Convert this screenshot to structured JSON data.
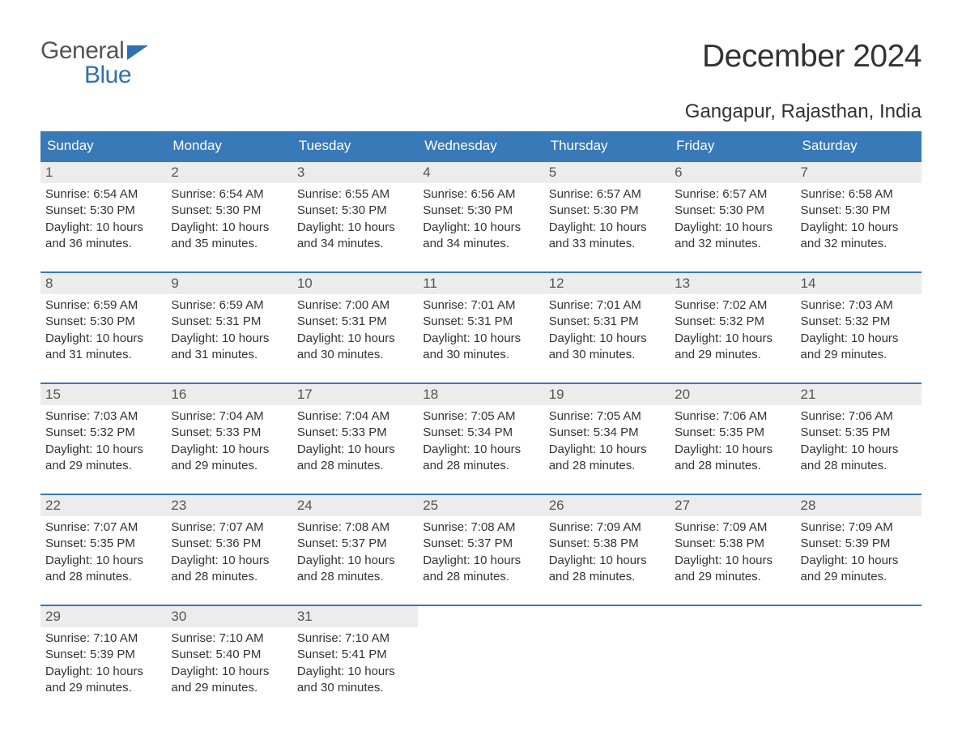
{
  "logo": {
    "word1": "General",
    "word2": "Blue"
  },
  "title": "December 2024",
  "location": "Gangapur, Rajasthan, India",
  "colors": {
    "header_bg": "#3879b8",
    "header_text": "#ffffff",
    "row_accent": "#3879b8",
    "daynum_bg": "#ececec",
    "body_text": "#333333",
    "logo_blue": "#2f70b0",
    "logo_gray": "#555555",
    "page_bg": "#ffffff"
  },
  "fonts": {
    "family": "Arial",
    "title_size_pt": 29,
    "location_size_pt": 18,
    "dow_size_pt": 13,
    "body_size_pt": 11
  },
  "days_of_week": [
    "Sunday",
    "Monday",
    "Tuesday",
    "Wednesday",
    "Thursday",
    "Friday",
    "Saturday"
  ],
  "weeks": [
    [
      {
        "n": "1",
        "sunrise": "Sunrise: 6:54 AM",
        "sunset": "Sunset: 5:30 PM",
        "d1": "Daylight: 10 hours",
        "d2": "and 36 minutes."
      },
      {
        "n": "2",
        "sunrise": "Sunrise: 6:54 AM",
        "sunset": "Sunset: 5:30 PM",
        "d1": "Daylight: 10 hours",
        "d2": "and 35 minutes."
      },
      {
        "n": "3",
        "sunrise": "Sunrise: 6:55 AM",
        "sunset": "Sunset: 5:30 PM",
        "d1": "Daylight: 10 hours",
        "d2": "and 34 minutes."
      },
      {
        "n": "4",
        "sunrise": "Sunrise: 6:56 AM",
        "sunset": "Sunset: 5:30 PM",
        "d1": "Daylight: 10 hours",
        "d2": "and 34 minutes."
      },
      {
        "n": "5",
        "sunrise": "Sunrise: 6:57 AM",
        "sunset": "Sunset: 5:30 PM",
        "d1": "Daylight: 10 hours",
        "d2": "and 33 minutes."
      },
      {
        "n": "6",
        "sunrise": "Sunrise: 6:57 AM",
        "sunset": "Sunset: 5:30 PM",
        "d1": "Daylight: 10 hours",
        "d2": "and 32 minutes."
      },
      {
        "n": "7",
        "sunrise": "Sunrise: 6:58 AM",
        "sunset": "Sunset: 5:30 PM",
        "d1": "Daylight: 10 hours",
        "d2": "and 32 minutes."
      }
    ],
    [
      {
        "n": "8",
        "sunrise": "Sunrise: 6:59 AM",
        "sunset": "Sunset: 5:30 PM",
        "d1": "Daylight: 10 hours",
        "d2": "and 31 minutes."
      },
      {
        "n": "9",
        "sunrise": "Sunrise: 6:59 AM",
        "sunset": "Sunset: 5:31 PM",
        "d1": "Daylight: 10 hours",
        "d2": "and 31 minutes."
      },
      {
        "n": "10",
        "sunrise": "Sunrise: 7:00 AM",
        "sunset": "Sunset: 5:31 PM",
        "d1": "Daylight: 10 hours",
        "d2": "and 30 minutes."
      },
      {
        "n": "11",
        "sunrise": "Sunrise: 7:01 AM",
        "sunset": "Sunset: 5:31 PM",
        "d1": "Daylight: 10 hours",
        "d2": "and 30 minutes."
      },
      {
        "n": "12",
        "sunrise": "Sunrise: 7:01 AM",
        "sunset": "Sunset: 5:31 PM",
        "d1": "Daylight: 10 hours",
        "d2": "and 30 minutes."
      },
      {
        "n": "13",
        "sunrise": "Sunrise: 7:02 AM",
        "sunset": "Sunset: 5:32 PM",
        "d1": "Daylight: 10 hours",
        "d2": "and 29 minutes."
      },
      {
        "n": "14",
        "sunrise": "Sunrise: 7:03 AM",
        "sunset": "Sunset: 5:32 PM",
        "d1": "Daylight: 10 hours",
        "d2": "and 29 minutes."
      }
    ],
    [
      {
        "n": "15",
        "sunrise": "Sunrise: 7:03 AM",
        "sunset": "Sunset: 5:32 PM",
        "d1": "Daylight: 10 hours",
        "d2": "and 29 minutes."
      },
      {
        "n": "16",
        "sunrise": "Sunrise: 7:04 AM",
        "sunset": "Sunset: 5:33 PM",
        "d1": "Daylight: 10 hours",
        "d2": "and 29 minutes."
      },
      {
        "n": "17",
        "sunrise": "Sunrise: 7:04 AM",
        "sunset": "Sunset: 5:33 PM",
        "d1": "Daylight: 10 hours",
        "d2": "and 28 minutes."
      },
      {
        "n": "18",
        "sunrise": "Sunrise: 7:05 AM",
        "sunset": "Sunset: 5:34 PM",
        "d1": "Daylight: 10 hours",
        "d2": "and 28 minutes."
      },
      {
        "n": "19",
        "sunrise": "Sunrise: 7:05 AM",
        "sunset": "Sunset: 5:34 PM",
        "d1": "Daylight: 10 hours",
        "d2": "and 28 minutes."
      },
      {
        "n": "20",
        "sunrise": "Sunrise: 7:06 AM",
        "sunset": "Sunset: 5:35 PM",
        "d1": "Daylight: 10 hours",
        "d2": "and 28 minutes."
      },
      {
        "n": "21",
        "sunrise": "Sunrise: 7:06 AM",
        "sunset": "Sunset: 5:35 PM",
        "d1": "Daylight: 10 hours",
        "d2": "and 28 minutes."
      }
    ],
    [
      {
        "n": "22",
        "sunrise": "Sunrise: 7:07 AM",
        "sunset": "Sunset: 5:35 PM",
        "d1": "Daylight: 10 hours",
        "d2": "and 28 minutes."
      },
      {
        "n": "23",
        "sunrise": "Sunrise: 7:07 AM",
        "sunset": "Sunset: 5:36 PM",
        "d1": "Daylight: 10 hours",
        "d2": "and 28 minutes."
      },
      {
        "n": "24",
        "sunrise": "Sunrise: 7:08 AM",
        "sunset": "Sunset: 5:37 PM",
        "d1": "Daylight: 10 hours",
        "d2": "and 28 minutes."
      },
      {
        "n": "25",
        "sunrise": "Sunrise: 7:08 AM",
        "sunset": "Sunset: 5:37 PM",
        "d1": "Daylight: 10 hours",
        "d2": "and 28 minutes."
      },
      {
        "n": "26",
        "sunrise": "Sunrise: 7:09 AM",
        "sunset": "Sunset: 5:38 PM",
        "d1": "Daylight: 10 hours",
        "d2": "and 28 minutes."
      },
      {
        "n": "27",
        "sunrise": "Sunrise: 7:09 AM",
        "sunset": "Sunset: 5:38 PM",
        "d1": "Daylight: 10 hours",
        "d2": "and 29 minutes."
      },
      {
        "n": "28",
        "sunrise": "Sunrise: 7:09 AM",
        "sunset": "Sunset: 5:39 PM",
        "d1": "Daylight: 10 hours",
        "d2": "and 29 minutes."
      }
    ],
    [
      {
        "n": "29",
        "sunrise": "Sunrise: 7:10 AM",
        "sunset": "Sunset: 5:39 PM",
        "d1": "Daylight: 10 hours",
        "d2": "and 29 minutes."
      },
      {
        "n": "30",
        "sunrise": "Sunrise: 7:10 AM",
        "sunset": "Sunset: 5:40 PM",
        "d1": "Daylight: 10 hours",
        "d2": "and 29 minutes."
      },
      {
        "n": "31",
        "sunrise": "Sunrise: 7:10 AM",
        "sunset": "Sunset: 5:41 PM",
        "d1": "Daylight: 10 hours",
        "d2": "and 30 minutes."
      },
      null,
      null,
      null,
      null
    ]
  ]
}
